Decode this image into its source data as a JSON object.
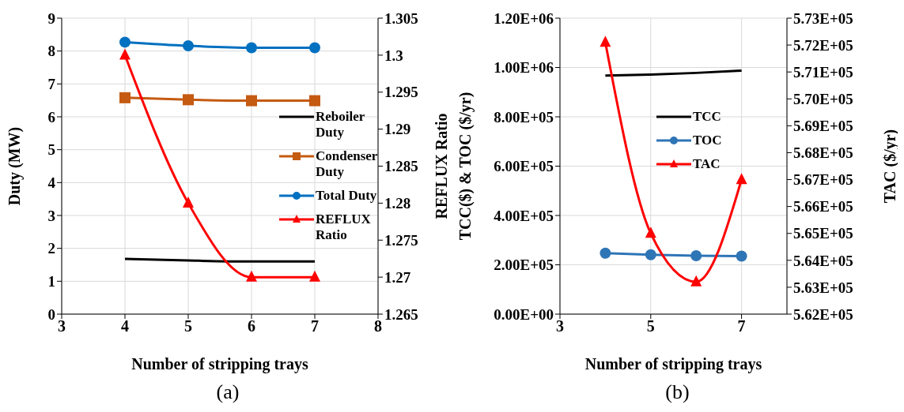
{
  "chart_data": [
    {
      "type": "line",
      "xlabel": "Number of stripping trays",
      "ylabel": "Duty (MW)",
      "y2label": "REFLUX Ratio",
      "x": [
        4,
        5,
        6,
        7
      ],
      "xlim": [
        3,
        8
      ],
      "xticks": [
        3,
        4,
        5,
        6,
        7,
        8
      ],
      "ylim": [
        0,
        9
      ],
      "yticks": [
        0,
        1,
        2,
        3,
        4,
        5,
        6,
        7,
        8,
        9
      ],
      "y2lim": [
        1.265,
        1.305
      ],
      "y2ticks": [
        1.265,
        1.27,
        1.275,
        1.28,
        1.285,
        1.29,
        1.295,
        1.3,
        1.305
      ],
      "grid": true,
      "legend": "right",
      "annotations": [
        "(a)"
      ],
      "series": [
        {
          "name": "Reboiler Duty",
          "color": "#000000",
          "marker": "none",
          "values": [
            1.68,
            1.63,
            1.6,
            1.6
          ]
        },
        {
          "name": "Condenser Duty",
          "color": "#c55a11",
          "marker": "square",
          "values": [
            6.58,
            6.52,
            6.49,
            6.49
          ]
        },
        {
          "name": "Total Duty",
          "color": "#0070c0",
          "marker": "circle",
          "values": [
            8.27,
            8.16,
            8.1,
            8.1
          ]
        },
        {
          "name": "REFLUX Ratio",
          "color": "#ff0000",
          "marker": "triangle",
          "axis": "y2",
          "values": [
            1.3,
            1.28,
            1.27,
            1.27
          ]
        }
      ]
    },
    {
      "type": "line",
      "xlabel": "Number of stripping trays",
      "ylabel": "TCC($) & TOC ($/yr)",
      "y2label": "TAC ($/yr)",
      "x": [
        4,
        5,
        6,
        7
      ],
      "xlim": [
        3,
        8
      ],
      "xticks": [
        3,
        5,
        7
      ],
      "ylim": [
        0,
        1200000
      ],
      "yticks": [
        {
          "value": 0,
          "label": "0.00E+00"
        },
        {
          "value": 200000,
          "label": "2.00E+05"
        },
        {
          "value": 400000,
          "label": "4.00E+05"
        },
        {
          "value": 600000,
          "label": "6.00E+05"
        },
        {
          "value": 800000,
          "label": "8.00E+05"
        },
        {
          "value": 1000000,
          "label": "1.00E+06"
        },
        {
          "value": 1200000,
          "label": "1.20E+06"
        }
      ],
      "y2lim": [
        562000,
        573000
      ],
      "y2ticks": [
        {
          "value": 562000,
          "label": "5.62E+05"
        },
        {
          "value": 563000,
          "label": "5.63E+05"
        },
        {
          "value": 564000,
          "label": "5.64E+05"
        },
        {
          "value": 565000,
          "label": "5.65E+05"
        },
        {
          "value": 566000,
          "label": "5.66E+05"
        },
        {
          "value": 567000,
          "label": "5.67E+05"
        },
        {
          "value": 568000,
          "label": "5.68E+05"
        },
        {
          "value": 569000,
          "label": "5.69E+05"
        },
        {
          "value": 570000,
          "label": "5.70E+05"
        },
        {
          "value": 571000,
          "label": "5.71E+05"
        },
        {
          "value": 572000,
          "label": "5.72E+05"
        },
        {
          "value": 573000,
          "label": "5.73E+05"
        }
      ],
      "grid": true,
      "legend": "right",
      "annotations": [
        "(b)"
      ],
      "series": [
        {
          "name": "TCC",
          "color": "#000000",
          "marker": "none",
          "values": [
            967000,
            971000,
            978000,
            987000
          ]
        },
        {
          "name": "TOC",
          "color": "#2e75b6",
          "marker": "circle",
          "values": [
            247000,
            241000,
            237000,
            235000
          ]
        },
        {
          "name": "TAC",
          "color": "#ff0000",
          "marker": "triangle",
          "axis": "y2",
          "values": [
            572100,
            565000,
            563200,
            567000
          ]
        }
      ]
    }
  ]
}
